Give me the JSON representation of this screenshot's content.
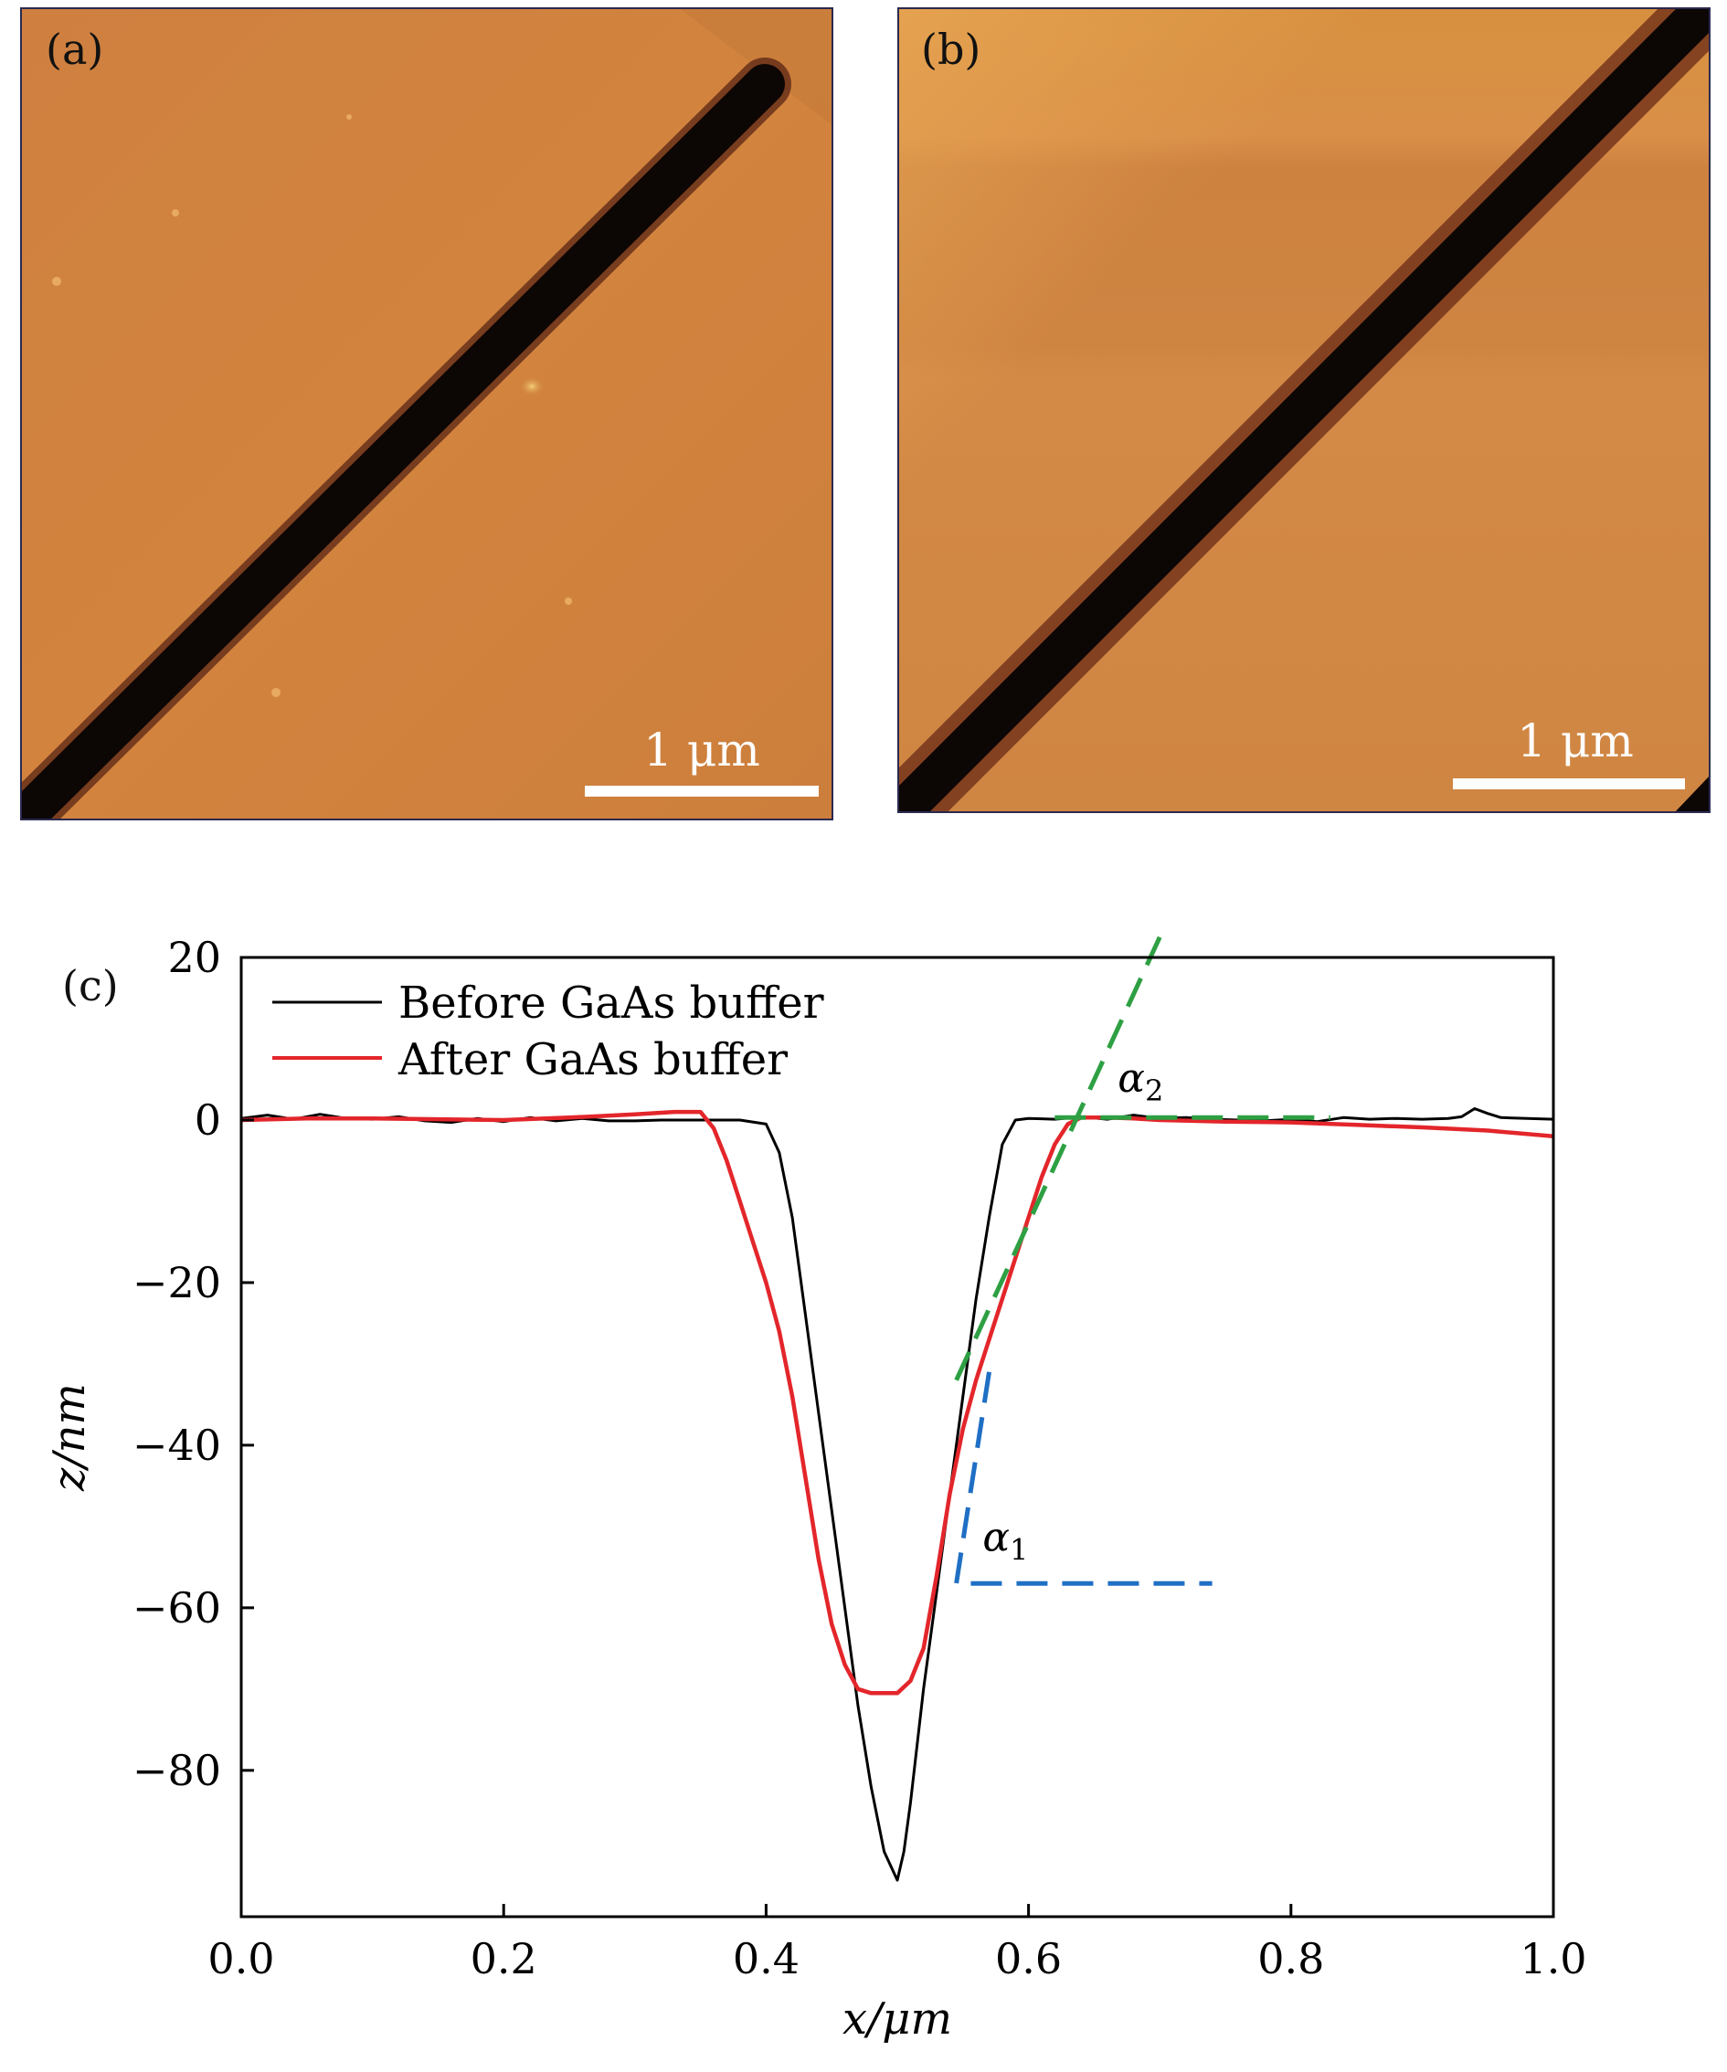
{
  "panels": {
    "a": {
      "label": "(a)",
      "scale_bar": "1 μm"
    },
    "b": {
      "label": "(b)",
      "scale_bar": "1 μm"
    }
  },
  "colors": {
    "afm_base": "#d0823e",
    "afm_trench": "#0c0604",
    "before": "#000000",
    "after": "#e3262b",
    "fit_alpha1": "#1f6fc4",
    "fit_alpha2": "#2ea043"
  },
  "chart_data": {
    "type": "line",
    "panel_label": "(c)",
    "xlabel": "x/μm",
    "ylabel": "z/nm",
    "xlim": [
      0.0,
      1.0
    ],
    "ylim": [
      -98,
      20
    ],
    "xticks": [
      "0.0",
      "0.2",
      "0.4",
      "0.6",
      "0.8",
      "1.0"
    ],
    "xtick_values": [
      0.0,
      0.2,
      0.4,
      0.6,
      0.8,
      1.0
    ],
    "yticks": [
      "20",
      "0",
      "−20",
      "−40",
      "−60",
      "−80"
    ],
    "ytick_values": [
      20,
      0,
      -20,
      -40,
      -60,
      -80
    ],
    "grid": false,
    "legend_position": "top-left",
    "series": [
      {
        "name": "Before GaAs buffer",
        "color": "#000000",
        "x": [
          0.0,
          0.02,
          0.04,
          0.06,
          0.08,
          0.1,
          0.12,
          0.14,
          0.16,
          0.18,
          0.2,
          0.22,
          0.24,
          0.26,
          0.28,
          0.3,
          0.32,
          0.34,
          0.36,
          0.38,
          0.4,
          0.41,
          0.42,
          0.43,
          0.44,
          0.45,
          0.46,
          0.47,
          0.48,
          0.49,
          0.5,
          0.505,
          0.51,
          0.52,
          0.53,
          0.54,
          0.55,
          0.56,
          0.57,
          0.58,
          0.59,
          0.6,
          0.62,
          0.64,
          0.66,
          0.68,
          0.7,
          0.72,
          0.74,
          0.76,
          0.78,
          0.8,
          0.82,
          0.84,
          0.86,
          0.88,
          0.9,
          0.92,
          0.93,
          0.94,
          0.95,
          0.96,
          0.98,
          1.0
        ],
        "y": [
          0.2,
          0.6,
          0.1,
          0.7,
          0.2,
          0.1,
          0.4,
          -0.1,
          -0.3,
          0.2,
          -0.2,
          0.3,
          -0.1,
          0.2,
          -0.1,
          -0.1,
          0.0,
          0.0,
          0.0,
          0.0,
          -0.5,
          -4,
          -12,
          -24,
          -36,
          -48,
          -60,
          -72,
          -82,
          -90,
          -93.5,
          -90,
          -84,
          -70,
          -58,
          -46,
          -34,
          -22,
          -12,
          -3,
          0,
          0.2,
          0.1,
          0.4,
          0.1,
          0.6,
          0.2,
          0.3,
          0.1,
          0.0,
          -0.1,
          0.1,
          -0.2,
          0.3,
          0.1,
          0.2,
          0.1,
          0.2,
          0.4,
          1.4,
          0.8,
          0.3,
          0.2,
          0.1
        ]
      },
      {
        "name": "After GaAs buffer",
        "color": "#e3262b",
        "x": [
          0.0,
          0.05,
          0.1,
          0.15,
          0.2,
          0.25,
          0.3,
          0.33,
          0.35,
          0.36,
          0.37,
          0.38,
          0.39,
          0.4,
          0.41,
          0.42,
          0.43,
          0.44,
          0.45,
          0.46,
          0.47,
          0.48,
          0.49,
          0.5,
          0.51,
          0.52,
          0.53,
          0.54,
          0.55,
          0.56,
          0.57,
          0.58,
          0.59,
          0.6,
          0.61,
          0.62,
          0.63,
          0.64,
          0.66,
          0.68,
          0.7,
          0.75,
          0.8,
          0.85,
          0.9,
          0.95,
          1.0
        ],
        "y": [
          0.0,
          0.2,
          0.2,
          0.1,
          0.0,
          0.3,
          0.7,
          1.0,
          1.0,
          -1,
          -5,
          -10,
          -15,
          -20,
          -26,
          -34,
          -44,
          -54,
          -62,
          -67,
          -70,
          -70.5,
          -70.5,
          -70.5,
          -69,
          -65,
          -56,
          -46,
          -38,
          -32,
          -27,
          -22,
          -17,
          -12,
          -7,
          -3,
          -0.5,
          0.3,
          0.3,
          0.2,
          0.0,
          -0.2,
          -0.3,
          -0.6,
          -0.9,
          -1.3,
          -2.0
        ]
      }
    ],
    "annotations": [
      {
        "label": "α",
        "subscript": "1",
        "color": "#1f6fc4",
        "line_x": [
          0.57,
          0.545,
          0.74
        ],
        "line_y": [
          -31,
          -57,
          -57
        ],
        "label_at": [
          0.565,
          -53
        ]
      },
      {
        "label": "α",
        "subscript": "2",
        "color": "#2ea043",
        "line_x": [
          0.545,
          0.7
        ],
        "line_y": [
          -32,
          22.5
        ],
        "line2_x": [
          0.62,
          0.83
        ],
        "line2_y": [
          0.3,
          0.3
        ],
        "label_at": [
          0.668,
          3.5
        ]
      }
    ]
  }
}
